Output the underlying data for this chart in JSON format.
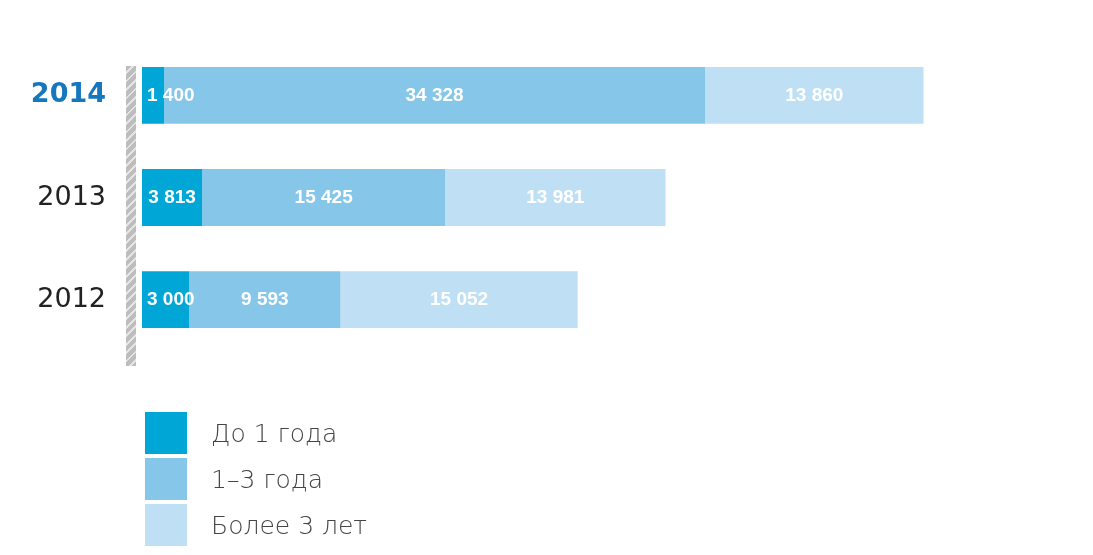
{
  "chart_data": {
    "type": "bar",
    "orientation": "horizontal",
    "stacked": true,
    "categories": [
      "2014",
      "2013",
      "2012"
    ],
    "series": [
      {
        "name": "До 1 года",
        "color": "#00a6d6",
        "values": [
          1400,
          3813,
          3000
        ],
        "value_labels": [
          "1 400",
          "3 813",
          "3 000"
        ]
      },
      {
        "name": "1–3 года",
        "color": "#86c6e8",
        "values": [
          34328,
          15425,
          9593
        ],
        "value_labels": [
          "34 328",
          "15 425",
          "9 593"
        ]
      },
      {
        "name": "Более 3 лет",
        "color": "#bfe0f4",
        "values": [
          13860,
          13981,
          15052
        ],
        "value_labels": [
          "13 860",
          "13 981",
          "15 052"
        ]
      }
    ],
    "tick_labels": "y",
    "legend": "bottom left"
  }
}
